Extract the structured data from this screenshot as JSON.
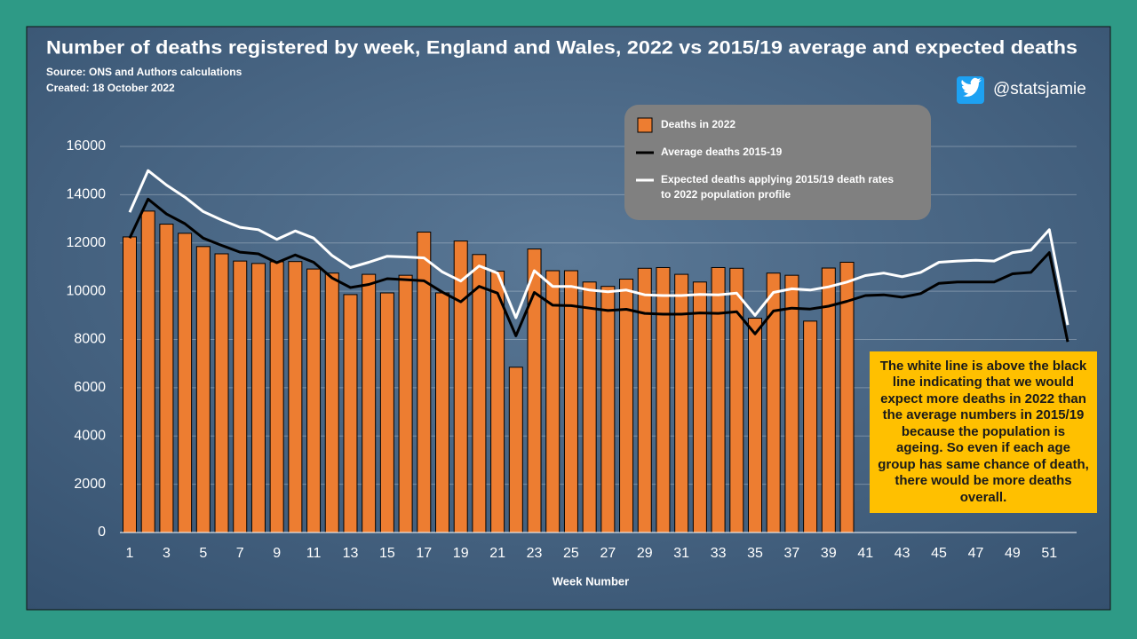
{
  "handle": "@statsjamie",
  "chart_data": {
    "type": "bar-line",
    "title": "Number of deaths registered by week, England and Wales, 2022 vs 2015/19 average and expected deaths",
    "subtitle": "Source: ONS and Authors calculations",
    "created": "Created: 18 October 2022",
    "x_label": "Week Number",
    "annotation": "The white line is above the black line indicating that we would expect more deaths in 2022 than the average numbers in 2015/19 because the population is ageing. So even if each age group has same chance of death, there would be more deaths overall.",
    "categories": [
      "1",
      null,
      "3",
      null,
      "5",
      null,
      "7",
      null,
      "9",
      null,
      "11",
      null,
      "13",
      null,
      "15",
      null,
      "17",
      null,
      "19",
      null,
      "21",
      null,
      "23",
      null,
      "25",
      null,
      "27",
      null,
      "29",
      null,
      "31",
      null,
      "33",
      null,
      "35",
      null,
      "37",
      null,
      "39",
      null,
      "41",
      null,
      "43",
      null,
      "45",
      null,
      "47",
      null,
      "49",
      null,
      "51",
      null
    ],
    "ylim": [
      0,
      16000
    ],
    "yticks": [
      0,
      2000,
      4000,
      6000,
      8000,
      10000,
      12000,
      14000,
      16000
    ],
    "grid": true,
    "series": [
      {
        "name": "Deaths in 2022",
        "kind": "bar",
        "color": "#ed7d31",
        "values": [
          12250,
          13320,
          12780,
          12400,
          11850,
          11550,
          11250,
          11150,
          11220,
          11230,
          10920,
          10750,
          9860,
          10700,
          9930,
          10660,
          12450,
          9930,
          12080,
          11520,
          10830,
          6850,
          11750,
          10850,
          10850,
          10380,
          10200,
          10500,
          10950,
          10980,
          10700,
          10380,
          10980,
          10950,
          8880,
          10750,
          10660,
          8760,
          10960,
          11200,
          null,
          null,
          null,
          null,
          null,
          null,
          null,
          null,
          null,
          null,
          null,
          null
        ]
      },
      {
        "name": "Average deaths 2015-19",
        "kind": "line",
        "color": "#000000",
        "values": [
          12200,
          13820,
          13200,
          12800,
          12200,
          11900,
          11620,
          11550,
          11180,
          11500,
          11200,
          10550,
          10150,
          10280,
          10520,
          10480,
          10430,
          9960,
          9560,
          10200,
          9920,
          8150,
          9950,
          9420,
          9400,
          9300,
          9200,
          9250,
          9080,
          9050,
          9050,
          9100,
          9080,
          9150,
          8230,
          9180,
          9300,
          9260,
          9380,
          9580,
          9820,
          9850,
          9750,
          9900,
          10330,
          10380,
          10380,
          10380,
          10720,
          10780,
          11600,
          7900
        ]
      },
      {
        "name": "Expected deaths applying 2015/19  death rates to 2022  population profile",
        "kind": "line",
        "color": "#ffffff",
        "values": [
          13270,
          15000,
          14400,
          13900,
          13300,
          12950,
          12650,
          12550,
          12150,
          12500,
          12200,
          11480,
          10980,
          11200,
          11450,
          11420,
          11380,
          10800,
          10420,
          11050,
          10750,
          8900,
          10850,
          10200,
          10200,
          10050,
          9980,
          10050,
          9850,
          9820,
          9820,
          9870,
          9850,
          9920,
          9000,
          9950,
          10100,
          10050,
          10180,
          10380,
          10650,
          10750,
          10600,
          10780,
          11200,
          11250,
          11280,
          11250,
          11600,
          11700,
          12550,
          8600
        ]
      }
    ]
  }
}
